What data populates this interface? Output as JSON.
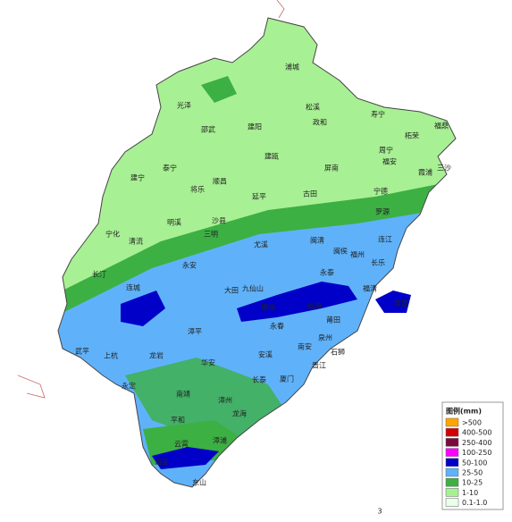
{
  "legend": {
    "title": "图例(mm)",
    "items": [
      {
        "label": ">500",
        "color": "#ffa500"
      },
      {
        "label": "400-500",
        "color": "#d40000"
      },
      {
        "label": "250-400",
        "color": "#7a0a3c"
      },
      {
        "label": "100-250",
        "color": "#ff00ff"
      },
      {
        "label": "50-100",
        "color": "#0000c8"
      },
      {
        "label": "25-50",
        "color": "#5fb2fa"
      },
      {
        "label": "10-25",
        "color": "#3cb043"
      },
      {
        "label": "1-10",
        "color": "#a8f094"
      },
      {
        "label": "0.1-1.0",
        "color": "#eaffea"
      }
    ]
  },
  "places": [
    "浦城",
    "松溪",
    "政和",
    "寿宁",
    "柘荣",
    "福鼎",
    "周宁",
    "福安",
    "霞浦",
    "三沙",
    "光泽",
    "邵武",
    "建阳",
    "建瓯",
    "泰宁",
    "建宁",
    "将乐",
    "顺昌",
    "延平",
    "屏南",
    "古田",
    "宁德",
    "罗源",
    "宁化",
    "清流",
    "明溪",
    "三明",
    "沙县",
    "尤溪",
    "闽清",
    "闽侯",
    "福州",
    "连江",
    "长乐",
    "永泰",
    "福清",
    "平潭",
    "永安",
    "长汀",
    "连城",
    "大田",
    "九仙山",
    "德化",
    "仙游",
    "莆田",
    "漳平",
    "永春",
    "龙岩",
    "上杭",
    "武平",
    "安溪",
    "南安",
    "泉州",
    "晋江",
    "石狮",
    "华安",
    "永定",
    "长泰",
    "厦门",
    "南靖",
    "漳州",
    "龙海",
    "平和",
    "漳浦",
    "云霄",
    "诏安",
    "东山"
  ],
  "page_mark": "3"
}
